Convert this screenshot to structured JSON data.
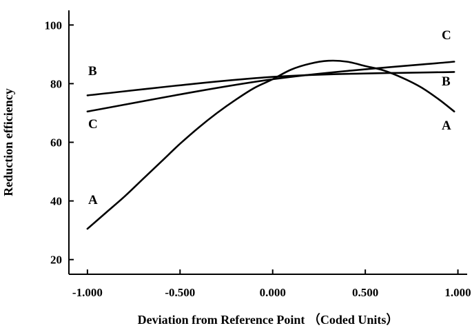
{
  "chart_data": {
    "type": "line",
    "title": "",
    "xlabel": "Deviation from Reference Point （Coded Units）",
    "ylabel": "Reduction efficiency",
    "xlim": [
      -1.1,
      1.05
    ],
    "ylim": [
      15,
      105
    ],
    "x_ticks": [
      -1.0,
      -0.5,
      0.0,
      0.5,
      1.0
    ],
    "x_tick_labels": [
      "-1.000",
      "-0.500",
      "0.000",
      "0.500",
      "1.000"
    ],
    "y_ticks": [
      20,
      40,
      60,
      80,
      100
    ],
    "y_tick_labels": [
      "20",
      "40",
      "60",
      "80",
      "100"
    ],
    "grid": false,
    "legend": "none",
    "series": [
      {
        "name": "A",
        "x": [
          -1.0,
          -0.9,
          -0.8,
          -0.7,
          -0.6,
          -0.5,
          -0.4,
          -0.3,
          -0.2,
          -0.1,
          0.0,
          0.1,
          0.2,
          0.3,
          0.4,
          0.5,
          0.6,
          0.7,
          0.8,
          0.9,
          0.98
        ],
        "values": [
          30.5,
          36.0,
          41.5,
          47.5,
          53.5,
          59.5,
          65.0,
          70.0,
          74.5,
          78.5,
          81.5,
          84.8,
          86.8,
          87.8,
          87.5,
          86.0,
          84.5,
          82.0,
          78.8,
          74.5,
          70.5
        ]
      },
      {
        "name": "B",
        "x": [
          -1.0,
          0.0,
          0.98
        ],
        "values": [
          76.0,
          82.3,
          84.0
        ]
      },
      {
        "name": "C",
        "x": [
          -1.0,
          0.0,
          0.98
        ],
        "values": [
          70.5,
          81.5,
          87.5
        ]
      }
    ],
    "annotations": [
      "A",
      "B",
      "C",
      "A",
      "B",
      "C"
    ]
  }
}
